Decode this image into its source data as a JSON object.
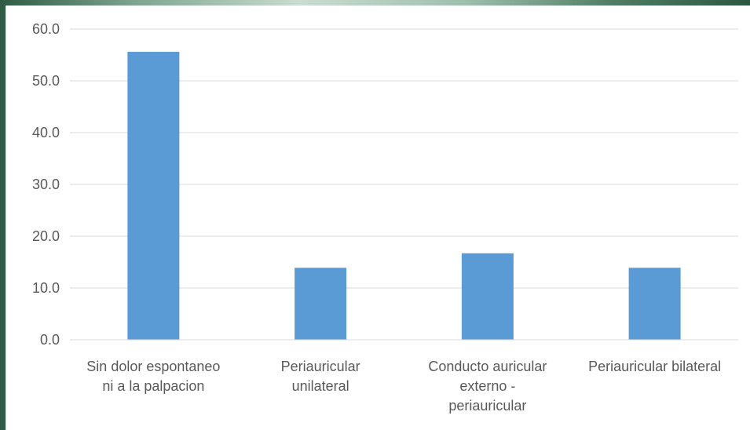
{
  "chart_data": {
    "type": "bar",
    "categories": [
      [
        "Sin dolor espontaneo",
        "ni a la palpacion"
      ],
      [
        "Periauricular",
        "unilateral"
      ],
      [
        "Conducto auricular",
        "externo -",
        "periauricular"
      ],
      [
        "Periauricular bilateral"
      ]
    ],
    "values": [
      55.6,
      13.9,
      16.7,
      13.9
    ],
    "ylim": [
      0,
      60
    ],
    "yticks": [
      "0.0",
      "10.0",
      "20.0",
      "30.0",
      "40.0",
      "50.0",
      "60.0"
    ],
    "title": "",
    "xlabel": "",
    "ylabel": "",
    "grid": true,
    "legend": "none",
    "colors": {
      "bar": "#5b9bd5",
      "grid": "#d9d9d9",
      "text": "#595959"
    }
  }
}
